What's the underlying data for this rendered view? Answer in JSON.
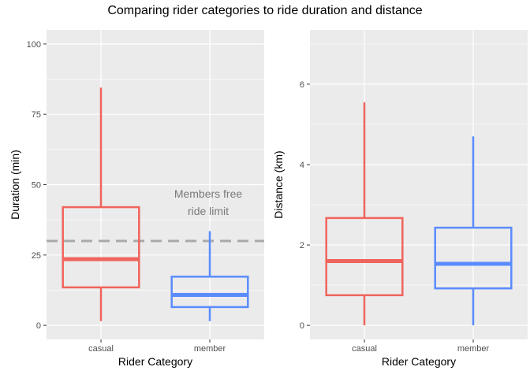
{
  "title": "Comparing rider categories to ride duration and distance",
  "colors": {
    "casual": "#F0645C",
    "member": "#5A8CFF",
    "panel": "#EBEBEB",
    "grid": "#FFFFFF",
    "refline": "#A9A9A9"
  },
  "chart_data": [
    {
      "type": "boxplot",
      "xlabel": "Rider Category",
      "ylabel": "Duration (min)",
      "ylim": [
        -5,
        105
      ],
      "yticks": [
        0,
        25,
        50,
        75,
        100
      ],
      "categories": [
        "casual",
        "member"
      ],
      "boxes": [
        {
          "category": "casual",
          "lower_whisker": 1.5,
          "q1": 13.5,
          "median": 23.5,
          "q3": 42,
          "upper_whisker": 84.5
        },
        {
          "category": "member",
          "lower_whisker": 1.5,
          "q1": 6.5,
          "median": 10.8,
          "q3": 17.3,
          "upper_whisker": 33.5
        }
      ],
      "reference_line": {
        "y": 30,
        "style": "dashed"
      },
      "annotation": {
        "lines": [
          "Members free",
          "ride limit"
        ]
      }
    },
    {
      "type": "boxplot",
      "xlabel": "Rider Category",
      "ylabel": "Distance (km)",
      "ylim": [
        -0.35,
        7.35
      ],
      "yticks": [
        0,
        2,
        4,
        6
      ],
      "categories": [
        "casual",
        "member"
      ],
      "boxes": [
        {
          "category": "casual",
          "lower_whisker": 0,
          "q1": 0.75,
          "median": 1.6,
          "q3": 2.67,
          "upper_whisker": 5.55
        },
        {
          "category": "member",
          "lower_whisker": 0,
          "q1": 0.92,
          "median": 1.53,
          "q3": 2.43,
          "upper_whisker": 4.7
        }
      ]
    }
  ]
}
